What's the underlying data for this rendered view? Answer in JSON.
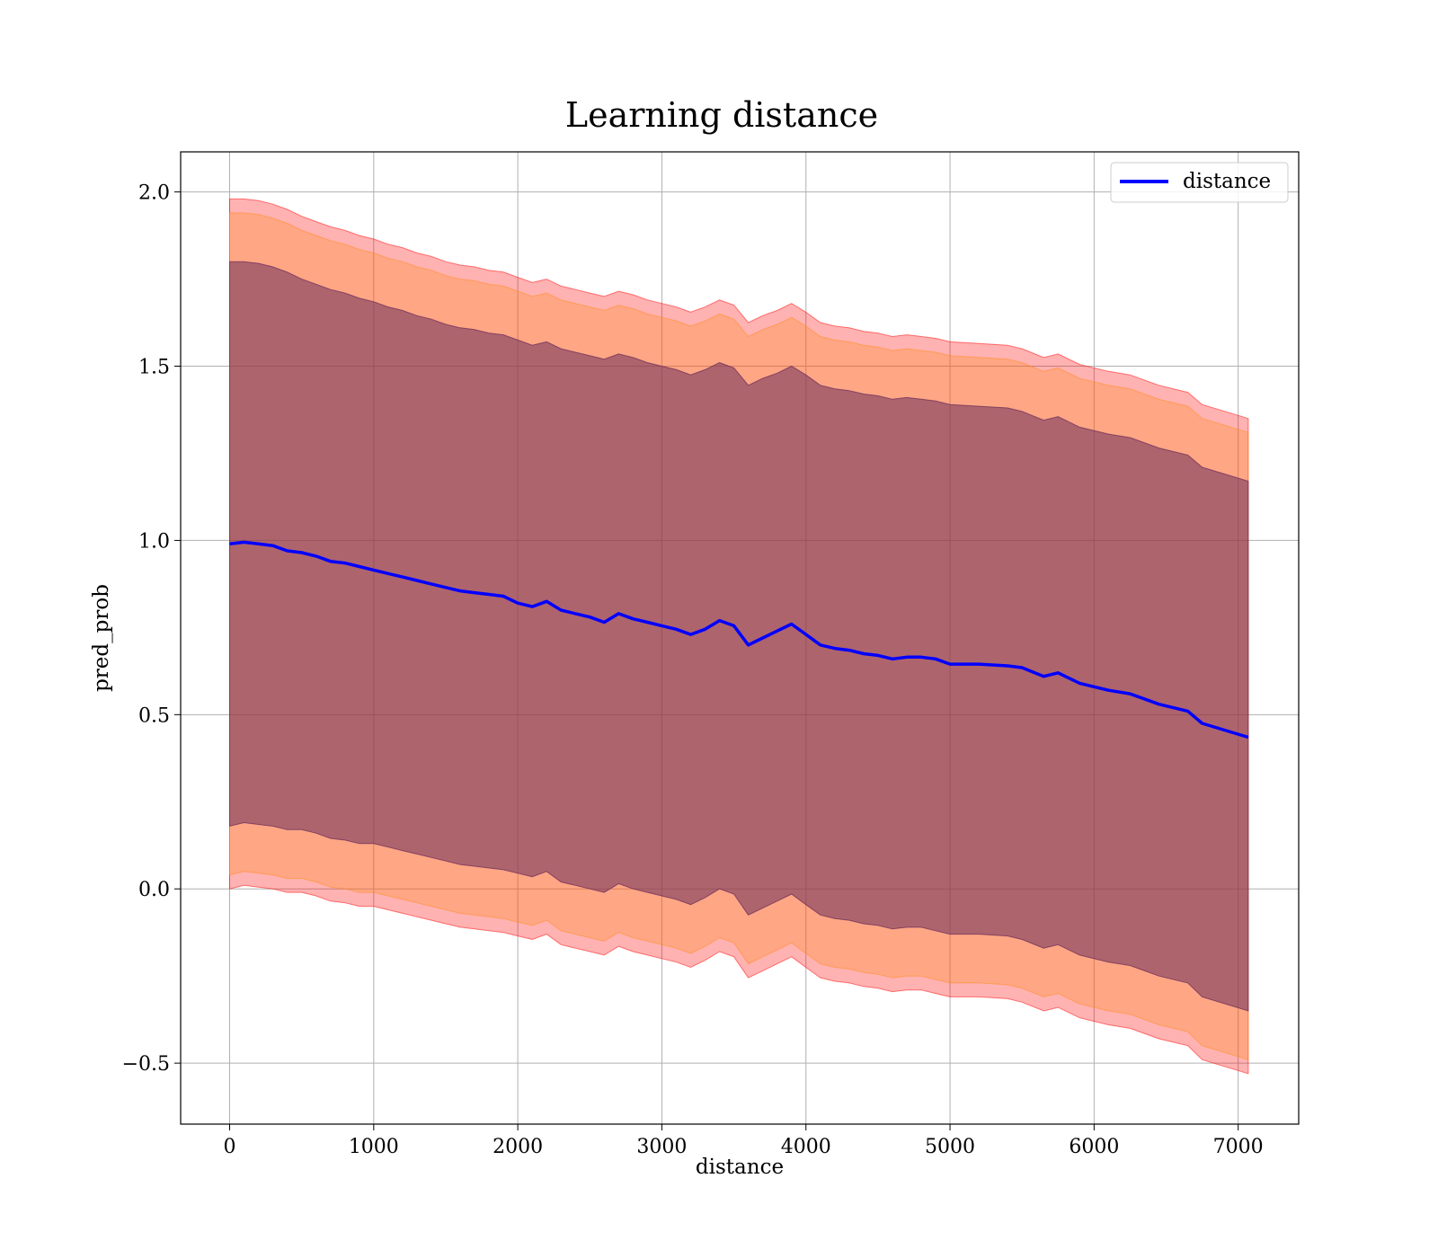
{
  "chart_data": {
    "type": "line",
    "title": "Learning distance",
    "xlabel": "distance",
    "ylabel": "pred_prob",
    "xlim": [
      -340,
      7420
    ],
    "ylim": [
      -0.675,
      2.115
    ],
    "xticks": [
      0,
      1000,
      2000,
      3000,
      4000,
      5000,
      6000,
      7000
    ],
    "xtick_labels": [
      "0",
      "1000",
      "2000",
      "3000",
      "4000",
      "5000",
      "6000",
      "7000"
    ],
    "yticks": [
      -0.5,
      0.0,
      0.5,
      1.0,
      1.5,
      2.0
    ],
    "ytick_labels": [
      "−0.5",
      "0.0",
      "0.5",
      "1.0",
      "1.5",
      "2.0"
    ],
    "grid": true,
    "legend_position": "top-right",
    "legend": [
      "distance"
    ],
    "series": [
      {
        "name": "distance",
        "color": "#0000ff",
        "x": [
          0,
          100,
          200,
          300,
          400,
          500,
          600,
          700,
          800,
          900,
          1000,
          1100,
          1200,
          1300,
          1400,
          1500,
          1600,
          1700,
          1800,
          1900,
          2000,
          2100,
          2200,
          2300,
          2400,
          2500,
          2600,
          2700,
          2800,
          2900,
          3000,
          3100,
          3200,
          3300,
          3400,
          3500,
          3600,
          3700,
          3800,
          3900,
          4000,
          4100,
          4200,
          4300,
          4400,
          4500,
          4600,
          4700,
          4800,
          4900,
          5000,
          5200,
          5400,
          5500,
          5650,
          5750,
          5900,
          6100,
          6250,
          6450,
          6650,
          6750,
          7070
        ],
        "y": [
          0.99,
          0.995,
          0.99,
          0.985,
          0.97,
          0.965,
          0.955,
          0.94,
          0.935,
          0.925,
          0.915,
          0.905,
          0.895,
          0.885,
          0.875,
          0.865,
          0.855,
          0.85,
          0.845,
          0.84,
          0.82,
          0.81,
          0.825,
          0.8,
          0.79,
          0.78,
          0.765,
          0.79,
          0.775,
          0.765,
          0.755,
          0.745,
          0.73,
          0.745,
          0.77,
          0.755,
          0.7,
          0.72,
          0.74,
          0.76,
          0.73,
          0.7,
          0.69,
          0.685,
          0.675,
          0.67,
          0.66,
          0.665,
          0.665,
          0.66,
          0.645,
          0.645,
          0.64,
          0.635,
          0.61,
          0.62,
          0.59,
          0.57,
          0.56,
          0.53,
          0.51,
          0.475,
          0.435
        ]
      }
    ],
    "bands": [
      {
        "color": "#ff0000",
        "opacity": 0.3,
        "upper": [
          1.98,
          1.98,
          1.975,
          1.965,
          1.95,
          1.93,
          1.915,
          1.9,
          1.89,
          1.875,
          1.865,
          1.85,
          1.84,
          1.825,
          1.815,
          1.8,
          1.79,
          1.785,
          1.775,
          1.77,
          1.755,
          1.74,
          1.75,
          1.73,
          1.72,
          1.71,
          1.7,
          1.715,
          1.705,
          1.69,
          1.68,
          1.67,
          1.655,
          1.67,
          1.69,
          1.675,
          1.625,
          1.645,
          1.66,
          1.68,
          1.655,
          1.625,
          1.615,
          1.61,
          1.6,
          1.595,
          1.585,
          1.59,
          1.585,
          1.58,
          1.57,
          1.565,
          1.56,
          1.55,
          1.525,
          1.535,
          1.505,
          1.485,
          1.475,
          1.445,
          1.425,
          1.39,
          1.35
        ],
        "lower": [
          0.0,
          0.01,
          0.005,
          0.0,
          -0.01,
          -0.01,
          -0.02,
          -0.035,
          -0.04,
          -0.05,
          -0.05,
          -0.06,
          -0.07,
          -0.08,
          -0.09,
          -0.1,
          -0.11,
          -0.115,
          -0.12,
          -0.125,
          -0.135,
          -0.145,
          -0.13,
          -0.16,
          -0.17,
          -0.18,
          -0.19,
          -0.165,
          -0.18,
          -0.19,
          -0.2,
          -0.21,
          -0.225,
          -0.205,
          -0.18,
          -0.195,
          -0.255,
          -0.235,
          -0.215,
          -0.195,
          -0.225,
          -0.255,
          -0.265,
          -0.27,
          -0.28,
          -0.285,
          -0.295,
          -0.29,
          -0.29,
          -0.3,
          -0.31,
          -0.31,
          -0.315,
          -0.325,
          -0.35,
          -0.34,
          -0.37,
          -0.39,
          -0.4,
          -0.43,
          -0.45,
          -0.49,
          -0.53
        ]
      },
      {
        "color": "#ff8c1a",
        "opacity": 0.3,
        "upper": [
          1.94,
          1.94,
          1.935,
          1.925,
          1.91,
          1.89,
          1.875,
          1.86,
          1.85,
          1.835,
          1.825,
          1.81,
          1.8,
          1.785,
          1.775,
          1.76,
          1.75,
          1.745,
          1.735,
          1.73,
          1.715,
          1.7,
          1.71,
          1.69,
          1.68,
          1.67,
          1.66,
          1.675,
          1.665,
          1.65,
          1.64,
          1.63,
          1.615,
          1.63,
          1.65,
          1.635,
          1.585,
          1.605,
          1.62,
          1.64,
          1.615,
          1.585,
          1.575,
          1.57,
          1.56,
          1.555,
          1.545,
          1.55,
          1.545,
          1.54,
          1.53,
          1.525,
          1.52,
          1.51,
          1.485,
          1.495,
          1.465,
          1.445,
          1.435,
          1.405,
          1.385,
          1.35,
          1.31
        ],
        "lower": [
          0.04,
          0.05,
          0.045,
          0.04,
          0.03,
          0.03,
          0.02,
          0.005,
          0.0,
          -0.01,
          -0.01,
          -0.02,
          -0.03,
          -0.04,
          -0.05,
          -0.06,
          -0.07,
          -0.075,
          -0.08,
          -0.085,
          -0.095,
          -0.105,
          -0.09,
          -0.12,
          -0.13,
          -0.14,
          -0.15,
          -0.125,
          -0.14,
          -0.15,
          -0.16,
          -0.17,
          -0.185,
          -0.165,
          -0.14,
          -0.155,
          -0.215,
          -0.195,
          -0.175,
          -0.155,
          -0.185,
          -0.215,
          -0.225,
          -0.23,
          -0.24,
          -0.245,
          -0.255,
          -0.25,
          -0.25,
          -0.26,
          -0.27,
          -0.27,
          -0.275,
          -0.285,
          -0.31,
          -0.3,
          -0.33,
          -0.35,
          -0.36,
          -0.39,
          -0.41,
          -0.45,
          -0.49
        ]
      },
      {
        "color": "#6b2d5b",
        "opacity": 0.55,
        "upper": [
          1.8,
          1.8,
          1.795,
          1.785,
          1.77,
          1.75,
          1.735,
          1.72,
          1.71,
          1.695,
          1.685,
          1.67,
          1.66,
          1.645,
          1.635,
          1.62,
          1.61,
          1.605,
          1.595,
          1.59,
          1.575,
          1.56,
          1.57,
          1.55,
          1.54,
          1.53,
          1.52,
          1.535,
          1.525,
          1.51,
          1.5,
          1.49,
          1.475,
          1.49,
          1.51,
          1.495,
          1.445,
          1.465,
          1.48,
          1.5,
          1.475,
          1.445,
          1.435,
          1.43,
          1.42,
          1.415,
          1.405,
          1.41,
          1.405,
          1.4,
          1.39,
          1.385,
          1.38,
          1.37,
          1.345,
          1.355,
          1.325,
          1.305,
          1.295,
          1.265,
          1.245,
          1.21,
          1.17
        ],
        "lower": [
          0.18,
          0.19,
          0.185,
          0.18,
          0.17,
          0.17,
          0.16,
          0.145,
          0.14,
          0.13,
          0.13,
          0.12,
          0.11,
          0.1,
          0.09,
          0.08,
          0.07,
          0.065,
          0.06,
          0.055,
          0.045,
          0.035,
          0.05,
          0.02,
          0.01,
          0.0,
          -0.01,
          0.015,
          0.0,
          -0.01,
          -0.02,
          -0.03,
          -0.045,
          -0.025,
          0.0,
          -0.015,
          -0.075,
          -0.055,
          -0.035,
          -0.015,
          -0.045,
          -0.075,
          -0.085,
          -0.09,
          -0.1,
          -0.105,
          -0.115,
          -0.11,
          -0.11,
          -0.12,
          -0.13,
          -0.13,
          -0.135,
          -0.145,
          -0.17,
          -0.16,
          -0.19,
          -0.21,
          -0.22,
          -0.25,
          -0.27,
          -0.31,
          -0.35
        ]
      }
    ]
  }
}
